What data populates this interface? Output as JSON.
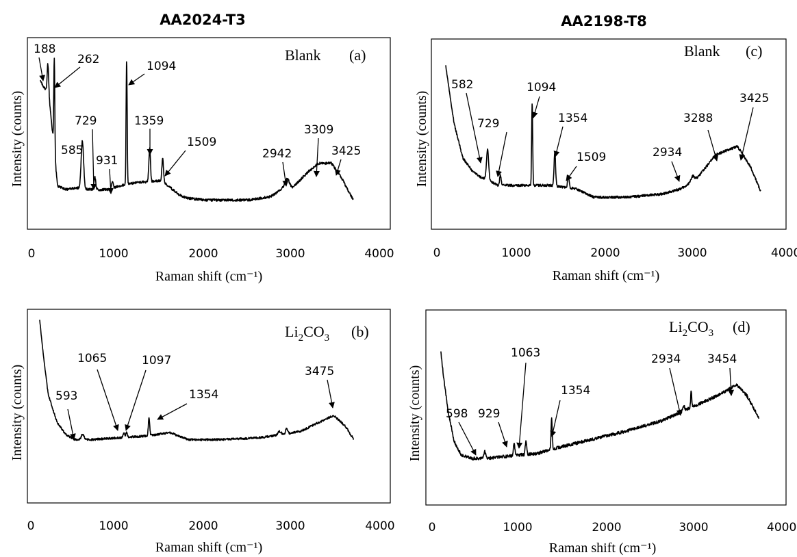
{
  "figure": {
    "column_titles": [
      "AA2024-T3",
      "AA2198-T8"
    ]
  },
  "chart_data": [
    {
      "type": "line",
      "panel": "(a)",
      "column": "AA2024-T3",
      "condition": "Blank",
      "xlabel": "Raman shift (cm⁻¹)",
      "ylabel": "Intensity (counts)",
      "xlim": [
        0,
        4000
      ],
      "xticks": [
        "0",
        "1000",
        "2000",
        "3000",
        "4000"
      ],
      "grid": false,
      "baseline": [
        [
          100,
          0.78
        ],
        [
          150,
          0.74
        ],
        [
          200,
          0.7
        ],
        [
          300,
          0.18
        ],
        [
          400,
          0.16
        ],
        [
          500,
          0.17
        ],
        [
          700,
          0.16
        ],
        [
          900,
          0.16
        ],
        [
          1000,
          0.18
        ],
        [
          1200,
          0.2
        ],
        [
          1500,
          0.21
        ],
        [
          1700,
          0.13
        ],
        [
          1800,
          0.11
        ],
        [
          2000,
          0.1
        ],
        [
          2500,
          0.1
        ],
        [
          2750,
          0.12
        ],
        [
          2900,
          0.17
        ],
        [
          3000,
          0.17
        ],
        [
          3200,
          0.27
        ],
        [
          3300,
          0.31
        ],
        [
          3450,
          0.31
        ],
        [
          3550,
          0.24
        ],
        [
          3700,
          0.1
        ]
      ],
      "peaks": [
        {
          "x": 188,
          "height": 0.17,
          "width": 8
        },
        {
          "x": 262,
          "height": 0.53,
          "width": 6
        },
        {
          "x": 585,
          "height": 0.27,
          "width": 14
        },
        {
          "x": 729,
          "height": 0.07,
          "width": 10
        },
        {
          "x": 931,
          "height": 0.04,
          "width": 10
        },
        {
          "x": 1094,
          "height": 0.71,
          "width": 6
        },
        {
          "x": 1359,
          "height": 0.19,
          "width": 9
        },
        {
          "x": 1509,
          "height": 0.13,
          "width": 9
        },
        {
          "x": 2942,
          "height": 0.05,
          "width": 25
        }
      ],
      "noise": 0.007,
      "labels": [
        "188",
        "262",
        "585",
        "729",
        "931",
        "1094",
        "1359",
        "1509",
        "2942",
        "3309",
        "3425"
      ]
    },
    {
      "type": "line",
      "panel": "(b)",
      "column": "AA2024-T3",
      "condition": "Li₂CO₃",
      "xlabel": "Raman shift (cm⁻¹)",
      "ylabel": "Intensity (counts)",
      "xlim": [
        0,
        4000
      ],
      "xticks": [
        "0",
        "1000",
        "2000",
        "3000",
        "4000"
      ],
      "grid": false,
      "baseline": [
        [
          100,
          1.0
        ],
        [
          150,
          0.76
        ],
        [
          200,
          0.56
        ],
        [
          300,
          0.4
        ],
        [
          400,
          0.33
        ],
        [
          500,
          0.3
        ],
        [
          700,
          0.3
        ],
        [
          1000,
          0.31
        ],
        [
          1300,
          0.32
        ],
        [
          1600,
          0.34
        ],
        [
          1800,
          0.3
        ],
        [
          2200,
          0.3
        ],
        [
          2600,
          0.31
        ],
        [
          2900,
          0.33
        ],
        [
          3100,
          0.35
        ],
        [
          3300,
          0.4
        ],
        [
          3470,
          0.44
        ],
        [
          3600,
          0.38
        ],
        [
          3700,
          0.3
        ]
      ],
      "peaks": [
        {
          "x": 593,
          "height": 0.03,
          "width": 15
        },
        {
          "x": 1065,
          "height": 0.03,
          "width": 8
        },
        {
          "x": 1097,
          "height": 0.03,
          "width": 8
        },
        {
          "x": 1354,
          "height": 0.1,
          "width": 8
        },
        {
          "x": 2850,
          "height": 0.02,
          "width": 20
        },
        {
          "x": 2930,
          "height": 0.03,
          "width": 12
        }
      ],
      "noise": 0.006,
      "labels": [
        "593",
        "1065",
        "1097",
        "1354",
        "3475"
      ]
    },
    {
      "type": "line",
      "panel": "(c)",
      "column": "AA2198-T8",
      "condition": "Blank",
      "xlabel": "Raman shift (cm⁻¹)",
      "ylabel": "Intensity (counts)",
      "xlim": [
        0,
        4000
      ],
      "xticks": [
        "0",
        "1000",
        "2000",
        "3000",
        "4000"
      ],
      "grid": false,
      "baseline": [
        [
          100,
          0.9
        ],
        [
          150,
          0.72
        ],
        [
          200,
          0.55
        ],
        [
          300,
          0.35
        ],
        [
          400,
          0.28
        ],
        [
          500,
          0.24
        ],
        [
          600,
          0.22
        ],
        [
          700,
          0.19
        ],
        [
          1000,
          0.19
        ],
        [
          1300,
          0.19
        ],
        [
          1600,
          0.17
        ],
        [
          1800,
          0.12
        ],
        [
          2200,
          0.12
        ],
        [
          2600,
          0.14
        ],
        [
          2800,
          0.17
        ],
        [
          2900,
          0.2
        ],
        [
          3000,
          0.24
        ],
        [
          3200,
          0.37
        ],
        [
          3450,
          0.42
        ],
        [
          3600,
          0.3
        ],
        [
          3720,
          0.15
        ]
      ],
      "peaks": [
        {
          "x": 582,
          "height": 0.18,
          "width": 12
        },
        {
          "x": 729,
          "height": 0.06,
          "width": 9
        },
        {
          "x": 1094,
          "height": 0.49,
          "width": 6
        },
        {
          "x": 1354,
          "height": 0.2,
          "width": 9
        },
        {
          "x": 1509,
          "height": 0.07,
          "width": 9
        },
        {
          "x": 2934,
          "height": 0.03,
          "width": 20
        }
      ],
      "noise": 0.007,
      "labels": [
        "582",
        "729",
        "1094",
        "1354",
        "1509",
        "2934",
        "3288",
        "3425"
      ]
    },
    {
      "type": "line",
      "panel": "(d)",
      "column": "AA2198-T8",
      "condition": "Li₂CO₃",
      "xlabel": "Raman shift (cm⁻¹)",
      "ylabel": "Intensity (counts)",
      "xlim": [
        0,
        4000
      ],
      "xticks": [
        "0",
        "1000",
        "2000",
        "3000",
        "4000"
      ],
      "grid": false,
      "baseline": [
        [
          100,
          0.82
        ],
        [
          130,
          0.68
        ],
        [
          180,
          0.48
        ],
        [
          250,
          0.3
        ],
        [
          330,
          0.22
        ],
        [
          450,
          0.2
        ],
        [
          600,
          0.2
        ],
        [
          800,
          0.21
        ],
        [
          1000,
          0.22
        ],
        [
          1200,
          0.23
        ],
        [
          1400,
          0.26
        ],
        [
          1800,
          0.31
        ],
        [
          2200,
          0.36
        ],
        [
          2600,
          0.42
        ],
        [
          2900,
          0.49
        ],
        [
          3200,
          0.56
        ],
        [
          3450,
          0.63
        ],
        [
          3560,
          0.57
        ],
        [
          3700,
          0.44
        ]
      ],
      "peaks": [
        {
          "x": 598,
          "height": 0.04,
          "width": 10
        },
        {
          "x": 929,
          "height": 0.07,
          "width": 8
        },
        {
          "x": 1063,
          "height": 0.08,
          "width": 8
        },
        {
          "x": 1354,
          "height": 0.18,
          "width": 7
        },
        {
          "x": 2850,
          "height": 0.03,
          "width": 10
        },
        {
          "x": 2934,
          "height": 0.1,
          "width": 6
        }
      ],
      "noise": 0.009,
      "labels": [
        "598",
        "929",
        "1063",
        "1354",
        "2934",
        "3454"
      ]
    }
  ]
}
